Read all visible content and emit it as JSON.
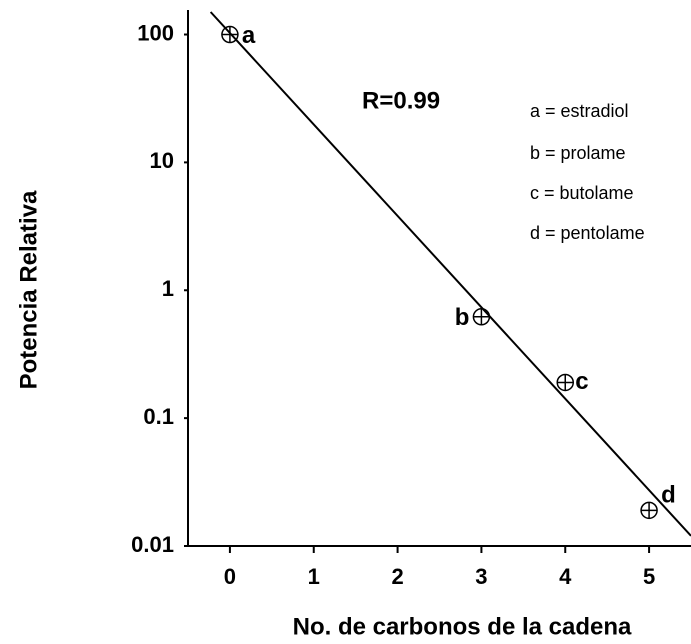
{
  "chart_data": {
    "type": "scatter",
    "x_label": "No. de carbonos de la cadena",
    "y_label": "Potencia Relativa",
    "annotation": "R=0.99",
    "legend_text": [
      "a = estradiol",
      "b = prolame",
      "c = butolame",
      "d = pentolame"
    ],
    "series": [
      {
        "type": "scatter",
        "color": "#000000",
        "x": [
          0,
          3,
          4,
          5
        ],
        "values": [
          100,
          0.62,
          0.19,
          0.019
        ],
        "point_labels": [
          "a",
          "b",
          "c",
          "d"
        ]
      },
      {
        "type": "line",
        "color": "#000000",
        "x": [
          -0.23,
          5.5
        ],
        "values": [
          150,
          0.012
        ]
      }
    ],
    "log_y": true,
    "xlim": [
      -0.5,
      5.5
    ],
    "ylim": [
      0.01,
      150
    ],
    "xticks": [
      0,
      1,
      2,
      3,
      4,
      5
    ],
    "yticks": [
      0.01,
      0.1,
      1,
      10,
      100
    ]
  }
}
